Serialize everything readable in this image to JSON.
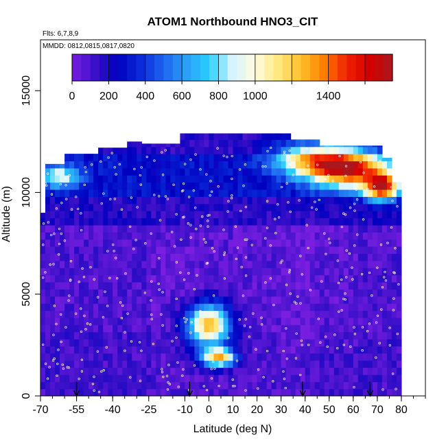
{
  "chart_data": {
    "type": "heatmap",
    "title": "ATOM1 Northbound HNO3_CIT",
    "flights_note": "Flts: 6,7,8,9",
    "dates_note": "MMDD: 0812,0815,0817,0820",
    "xlabel": "Latitude (deg N)",
    "ylabel": "Altitude (m)",
    "xlim": [
      -70,
      90
    ],
    "ylim": [
      0,
      17500
    ],
    "x_ticks": [
      -70,
      -55,
      -40,
      -25,
      -10,
      0,
      10,
      20,
      30,
      40,
      50,
      60,
      70,
      80
    ],
    "y_ticks": [
      0,
      5000,
      10000,
      15000
    ],
    "colorbar": {
      "range": [
        0,
        1750
      ],
      "ticks": [
        0,
        200,
        400,
        600,
        800,
        1000,
        1400
      ],
      "colors": [
        "#7a1ee0",
        "#3a10c8",
        "#0000c0",
        "#0a2cd8",
        "#1e64f0",
        "#2aa0f6",
        "#28d0ff",
        "#d6f4ff",
        "#fffbe0",
        "#ffe880",
        "#ffc02a",
        "#ff7e00",
        "#f02000",
        "#d40000",
        "#a8181e"
      ]
    },
    "arrows_latitude": [
      -55,
      -8,
      39,
      67
    ],
    "profile_region": {
      "lat": [
        -70,
        80
      ],
      "alt": [
        0,
        12900
      ]
    },
    "enhancements": [
      {
        "lat": 0,
        "alt": 3500,
        "value": 1200,
        "lat_width": 9,
        "alt_width": 1000
      },
      {
        "lat": 4,
        "alt": 1900,
        "value": 1150,
        "lat_width": 7,
        "alt_width": 450
      },
      {
        "lat": 57,
        "alt": 11200,
        "value": 1400,
        "lat_width": 16,
        "alt_width": 900
      },
      {
        "lat": 72,
        "alt": 10300,
        "value": 1250,
        "lat_width": 7,
        "alt_width": 700
      },
      {
        "lat": 40,
        "alt": 11700,
        "value": 700,
        "lat_width": 14,
        "alt_width": 800
      },
      {
        "lat": -62,
        "alt": 10800,
        "value": 650,
        "lat_width": 8,
        "alt_width": 500
      }
    ]
  }
}
